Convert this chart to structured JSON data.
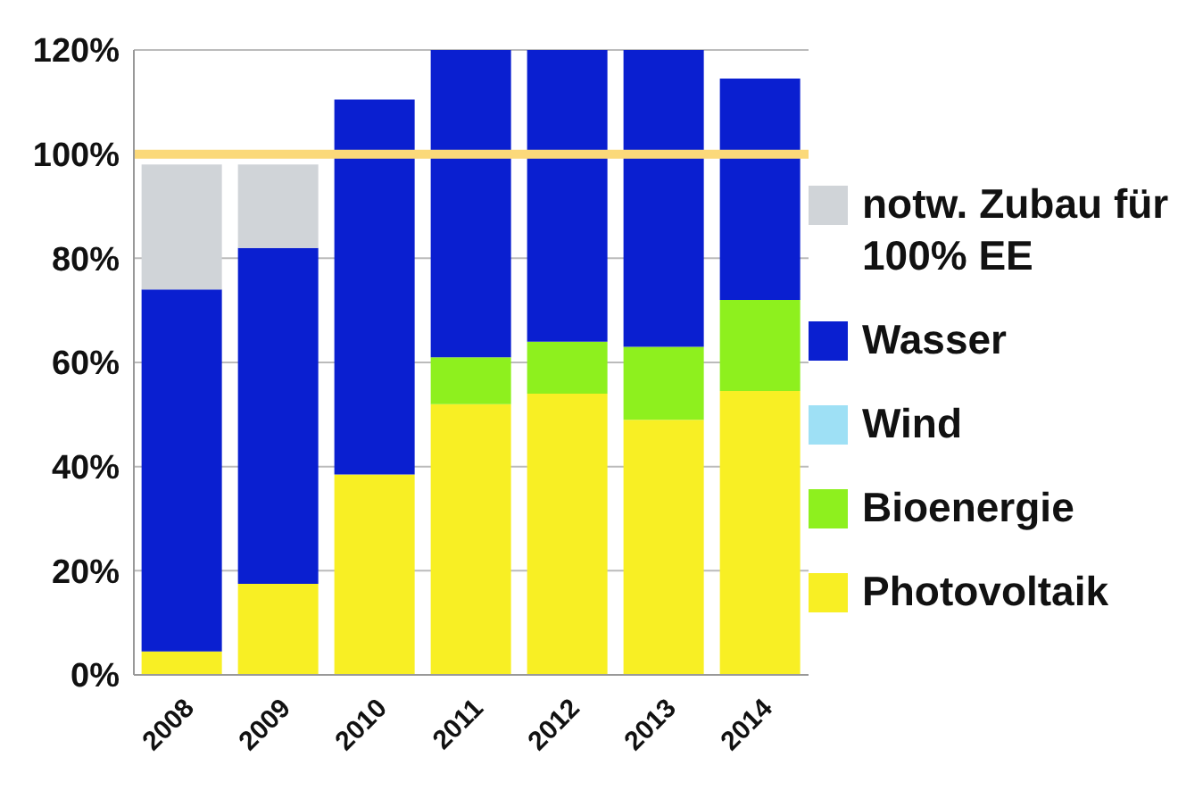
{
  "chart_data": {
    "type": "bar",
    "stacked": true,
    "categories": [
      "2008",
      "2009",
      "2010",
      "2011",
      "2012",
      "2013",
      "2014"
    ],
    "series": [
      {
        "name": "Photovoltaik",
        "color": "#f8ef24",
        "values": [
          4.5,
          17.5,
          38.5,
          52,
          54,
          49,
          54.5
        ]
      },
      {
        "name": "Bioenergie",
        "color": "#8ef01e",
        "values": [
          0,
          0,
          0,
          9,
          10,
          14,
          17.5
        ]
      },
      {
        "name": "Wind",
        "color": "#9ee0f5",
        "values": [
          0,
          0,
          0,
          0,
          0,
          0,
          0
        ]
      },
      {
        "name": "Wasser",
        "color": "#0a1fd0",
        "values": [
          69.5,
          64.5,
          72,
          59,
          56,
          57,
          42.5
        ]
      },
      {
        "name": "notw. Zubau für 100% EE",
        "color": "#d0d4d8",
        "values": [
          24,
          16,
          0,
          0,
          0,
          0,
          0
        ]
      }
    ],
    "ylim": [
      0,
      120
    ],
    "yticks": [
      {
        "value": 0,
        "label": "0%"
      },
      {
        "value": 20,
        "label": "20%"
      },
      {
        "value": 40,
        "label": "40%"
      },
      {
        "value": 60,
        "label": "60%"
      },
      {
        "value": 80,
        "label": "80%"
      },
      {
        "value": 100,
        "label": "100%"
      },
      {
        "value": 120,
        "label": "120%"
      }
    ],
    "grid": "y",
    "legend": "right",
    "ref_lines": [
      {
        "axis": "y",
        "value": 100,
        "label": null,
        "color": "#fbd97a"
      }
    ]
  }
}
